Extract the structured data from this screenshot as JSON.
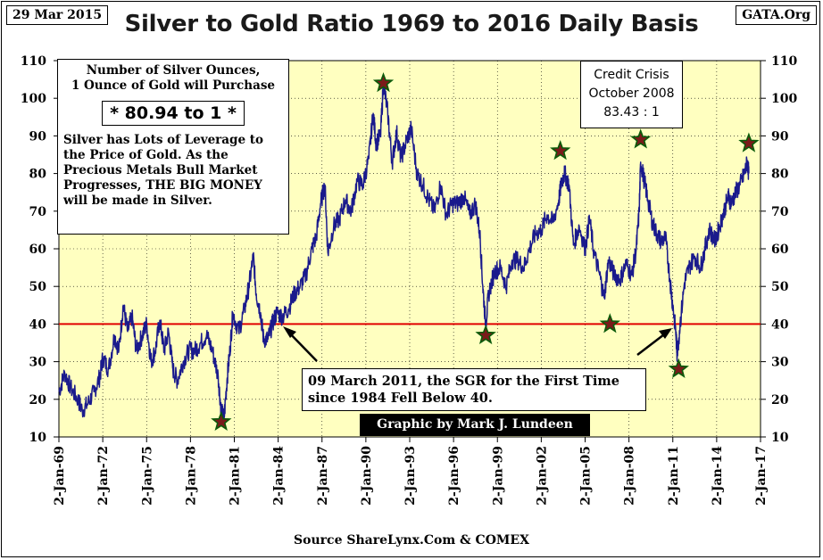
{
  "header": {
    "date": "29 Mar 2015",
    "site": "GATA.Org",
    "title": "Silver to Gold Ratio 1969 to 2016 Daily Basis"
  },
  "info_box": {
    "line1": "Number  of Silver Ounces,",
    "line2": "1 Ounce of Gold will Purchase",
    "ratio": "* 80.94 to 1 *",
    "body1": "Silver has Lots of Leverage to",
    "body2": "the Price of Gold.  As the",
    "body3": "Precious Metals Bull Market",
    "body4": "Progresses,  THE BIG MONEY",
    "body5": "will be made in Silver."
  },
  "credit_box": {
    "line1": "Credit Crisis",
    "line2": "October 2008",
    "line3": "83.43 : 1"
  },
  "note_box": {
    "line1": "09 March 2011, the SGR for the First Time",
    "line2": "since 1984 Fell Below 40."
  },
  "credit_label": "Graphic by Mark J. Lundeen",
  "source": "Source ShareLynx.Com & COMEX",
  "colors": {
    "plot_bg": "#ffffc0",
    "line": "#1a1a8c",
    "reference_line": "#e00000",
    "star_fill": "#7a1a1a",
    "star_stroke": "#0a5a0a",
    "ratio_text": "#7a1010"
  },
  "chart_data": {
    "type": "line",
    "title": "Silver to Gold Ratio 1969 to 2016 Daily Basis",
    "xlabel": "",
    "ylabel": "",
    "x_ticks": [
      "2-Jan-69",
      "2-Jan-72",
      "2-Jan-75",
      "2-Jan-78",
      "2-Jan-81",
      "2-Jan-84",
      "2-Jan-87",
      "2-Jan-90",
      "2-Jan-93",
      "2-Jan-96",
      "2-Jan-99",
      "2-Jan-02",
      "2-Jan-05",
      "2-Jan-08",
      "2-Jan-11",
      "2-Jan-14",
      "2-Jan-17"
    ],
    "x_range": [
      1969.0,
      2017.0
    ],
    "ylim": [
      10,
      110
    ],
    "y_ticks": [
      10,
      20,
      30,
      40,
      50,
      60,
      70,
      80,
      90,
      100,
      110
    ],
    "grid": true,
    "reference_line": 40,
    "series": [
      {
        "values": [
          [
            1969.0,
            22
          ],
          [
            1969.4,
            27
          ],
          [
            1969.8,
            23
          ],
          [
            1970.3,
            20
          ],
          [
            1970.6,
            17
          ],
          [
            1971.0,
            19
          ],
          [
            1971.4,
            22
          ],
          [
            1971.8,
            26
          ],
          [
            1972.0,
            31
          ],
          [
            1972.4,
            28
          ],
          [
            1972.8,
            37
          ],
          [
            1973.1,
            33
          ],
          [
            1973.4,
            45
          ],
          [
            1973.7,
            38
          ],
          [
            1974.0,
            42
          ],
          [
            1974.3,
            33
          ],
          [
            1974.7,
            37
          ],
          [
            1975.0,
            40
          ],
          [
            1975.3,
            30
          ],
          [
            1975.6,
            33
          ],
          [
            1975.9,
            41
          ],
          [
            1976.2,
            33
          ],
          [
            1976.5,
            38
          ],
          [
            1976.8,
            28
          ],
          [
            1977.1,
            25
          ],
          [
            1977.5,
            30
          ],
          [
            1977.9,
            33
          ],
          [
            1978.3,
            33
          ],
          [
            1978.7,
            35
          ],
          [
            1979.1,
            37
          ],
          [
            1979.5,
            33
          ],
          [
            1979.9,
            26
          ],
          [
            1980.1,
            17
          ],
          [
            1980.3,
            15
          ],
          [
            1980.5,
            25
          ],
          [
            1980.7,
            33
          ],
          [
            1980.9,
            43
          ],
          [
            1981.3,
            38
          ],
          [
            1981.7,
            44
          ],
          [
            1982.0,
            50
          ],
          [
            1982.3,
            58
          ],
          [
            1982.5,
            48
          ],
          [
            1982.8,
            43
          ],
          [
            1983.0,
            36
          ],
          [
            1983.3,
            36
          ],
          [
            1983.6,
            40
          ],
          [
            1983.9,
            43
          ],
          [
            1984.3,
            42
          ],
          [
            1984.7,
            44
          ],
          [
            1985.1,
            48
          ],
          [
            1985.5,
            50
          ],
          [
            1985.9,
            53
          ],
          [
            1986.3,
            60
          ],
          [
            1986.6,
            63
          ],
          [
            1986.9,
            72
          ],
          [
            1987.2,
            77
          ],
          [
            1987.4,
            59
          ],
          [
            1987.8,
            66
          ],
          [
            1988.2,
            68
          ],
          [
            1988.6,
            73
          ],
          [
            1989.0,
            70
          ],
          [
            1989.4,
            78
          ],
          [
            1989.8,
            77
          ],
          [
            1990.2,
            84
          ],
          [
            1990.5,
            96
          ],
          [
            1990.7,
            88
          ],
          [
            1991.0,
            90
          ],
          [
            1991.2,
            104
          ],
          [
            1991.5,
            96
          ],
          [
            1991.8,
            83
          ],
          [
            1992.1,
            91
          ],
          [
            1992.4,
            84
          ],
          [
            1992.8,
            89
          ],
          [
            1993.1,
            92
          ],
          [
            1993.5,
            80
          ],
          [
            1993.9,
            77
          ],
          [
            1994.3,
            73
          ],
          [
            1994.7,
            70
          ],
          [
            1995.1,
            77
          ],
          [
            1995.5,
            69
          ],
          [
            1995.9,
            72
          ],
          [
            1996.3,
            72
          ],
          [
            1996.7,
            74
          ],
          [
            1997.1,
            69
          ],
          [
            1997.5,
            72
          ],
          [
            1997.8,
            64
          ],
          [
            1998.0,
            50
          ],
          [
            1998.2,
            40
          ],
          [
            1998.4,
            48
          ],
          [
            1998.8,
            54
          ],
          [
            1999.2,
            55
          ],
          [
            1999.6,
            50
          ],
          [
            2000.0,
            57
          ],
          [
            2000.4,
            57
          ],
          [
            2000.8,
            55
          ],
          [
            2001.2,
            60
          ],
          [
            2001.6,
            64
          ],
          [
            2002.0,
            65
          ],
          [
            2002.4,
            69
          ],
          [
            2002.8,
            67
          ],
          [
            2003.2,
            73
          ],
          [
            2003.4,
            78
          ],
          [
            2003.6,
            80
          ],
          [
            2003.9,
            77
          ],
          [
            2004.2,
            61
          ],
          [
            2004.6,
            66
          ],
          [
            2005.0,
            60
          ],
          [
            2005.3,
            68
          ],
          [
            2005.6,
            59
          ],
          [
            2006.0,
            53
          ],
          [
            2006.3,
            47
          ],
          [
            2006.6,
            57
          ],
          [
            2007.0,
            53
          ],
          [
            2007.4,
            52
          ],
          [
            2007.8,
            56
          ],
          [
            2008.2,
            53
          ],
          [
            2008.5,
            60
          ],
          [
            2008.7,
            70
          ],
          [
            2008.8,
            83
          ],
          [
            2009.0,
            79
          ],
          [
            2009.3,
            73
          ],
          [
            2009.6,
            67
          ],
          [
            2009.9,
            64
          ],
          [
            2010.2,
            62
          ],
          [
            2010.5,
            63
          ],
          [
            2010.8,
            52
          ],
          [
            2011.0,
            45
          ],
          [
            2011.2,
            38
          ],
          [
            2011.3,
            32
          ],
          [
            2011.5,
            40
          ],
          [
            2011.8,
            51
          ],
          [
            2012.1,
            55
          ],
          [
            2012.5,
            58
          ],
          [
            2012.9,
            55
          ],
          [
            2013.2,
            60
          ],
          [
            2013.5,
            65
          ],
          [
            2013.9,
            62
          ],
          [
            2014.2,
            66
          ],
          [
            2014.5,
            70
          ],
          [
            2014.8,
            74
          ],
          [
            2015.0,
            72
          ],
          [
            2015.3,
            75
          ],
          [
            2015.6,
            77
          ],
          [
            2015.9,
            80
          ],
          [
            2016.1,
            83
          ],
          [
            2016.2,
            80
          ]
        ]
      }
    ],
    "markers": [
      {
        "x": 1980.1,
        "y": 14
      },
      {
        "x": 1991.2,
        "y": 104
      },
      {
        "x": 1998.2,
        "y": 37
      },
      {
        "x": 2003.3,
        "y": 86
      },
      {
        "x": 2006.7,
        "y": 40
      },
      {
        "x": 2008.8,
        "y": 89
      },
      {
        "x": 2011.4,
        "y": 28
      },
      {
        "x": 2016.2,
        "y": 88
      }
    ]
  }
}
